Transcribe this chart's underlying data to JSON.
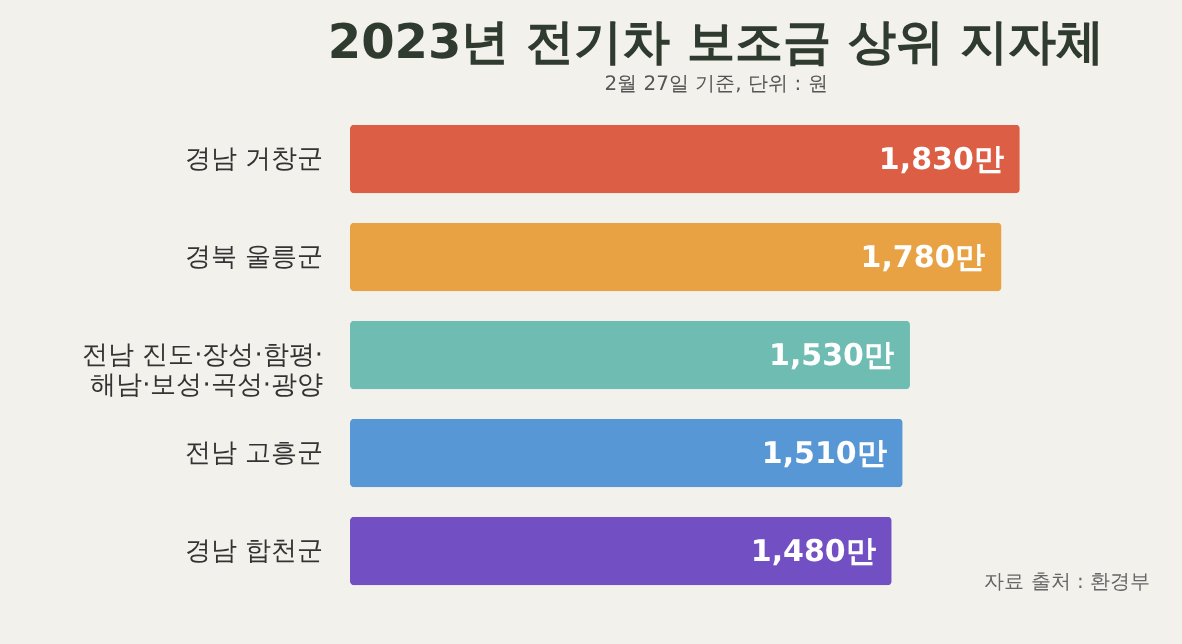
{
  "chart_data": {
    "type": "bar",
    "orientation": "horizontal",
    "title": "2023년 전기차 보조금 상위 지자체",
    "subtitle": "2월 27일 기준, 단위 : 원",
    "categories": [
      "경남 거창군",
      "경북 울릉군",
      "전남 진도·장성·함평·\n해남·보성·곡성·광양",
      "전남 고흥군",
      "경남 합천군"
    ],
    "values": [
      1830,
      1780,
      1530,
      1510,
      1480
    ],
    "colors": [
      "#dc5f45",
      "#e8a244",
      "#6fbcb3",
      "#5897d6",
      "#7250c4"
    ],
    "value_labels": [
      "1,830만",
      "1,780만",
      "1,530만",
      "1,510만",
      "1,480만"
    ],
    "annotations": [
      "자료 출처 : 환경부"
    ],
    "tick_labels": "y",
    "grid": false
  }
}
